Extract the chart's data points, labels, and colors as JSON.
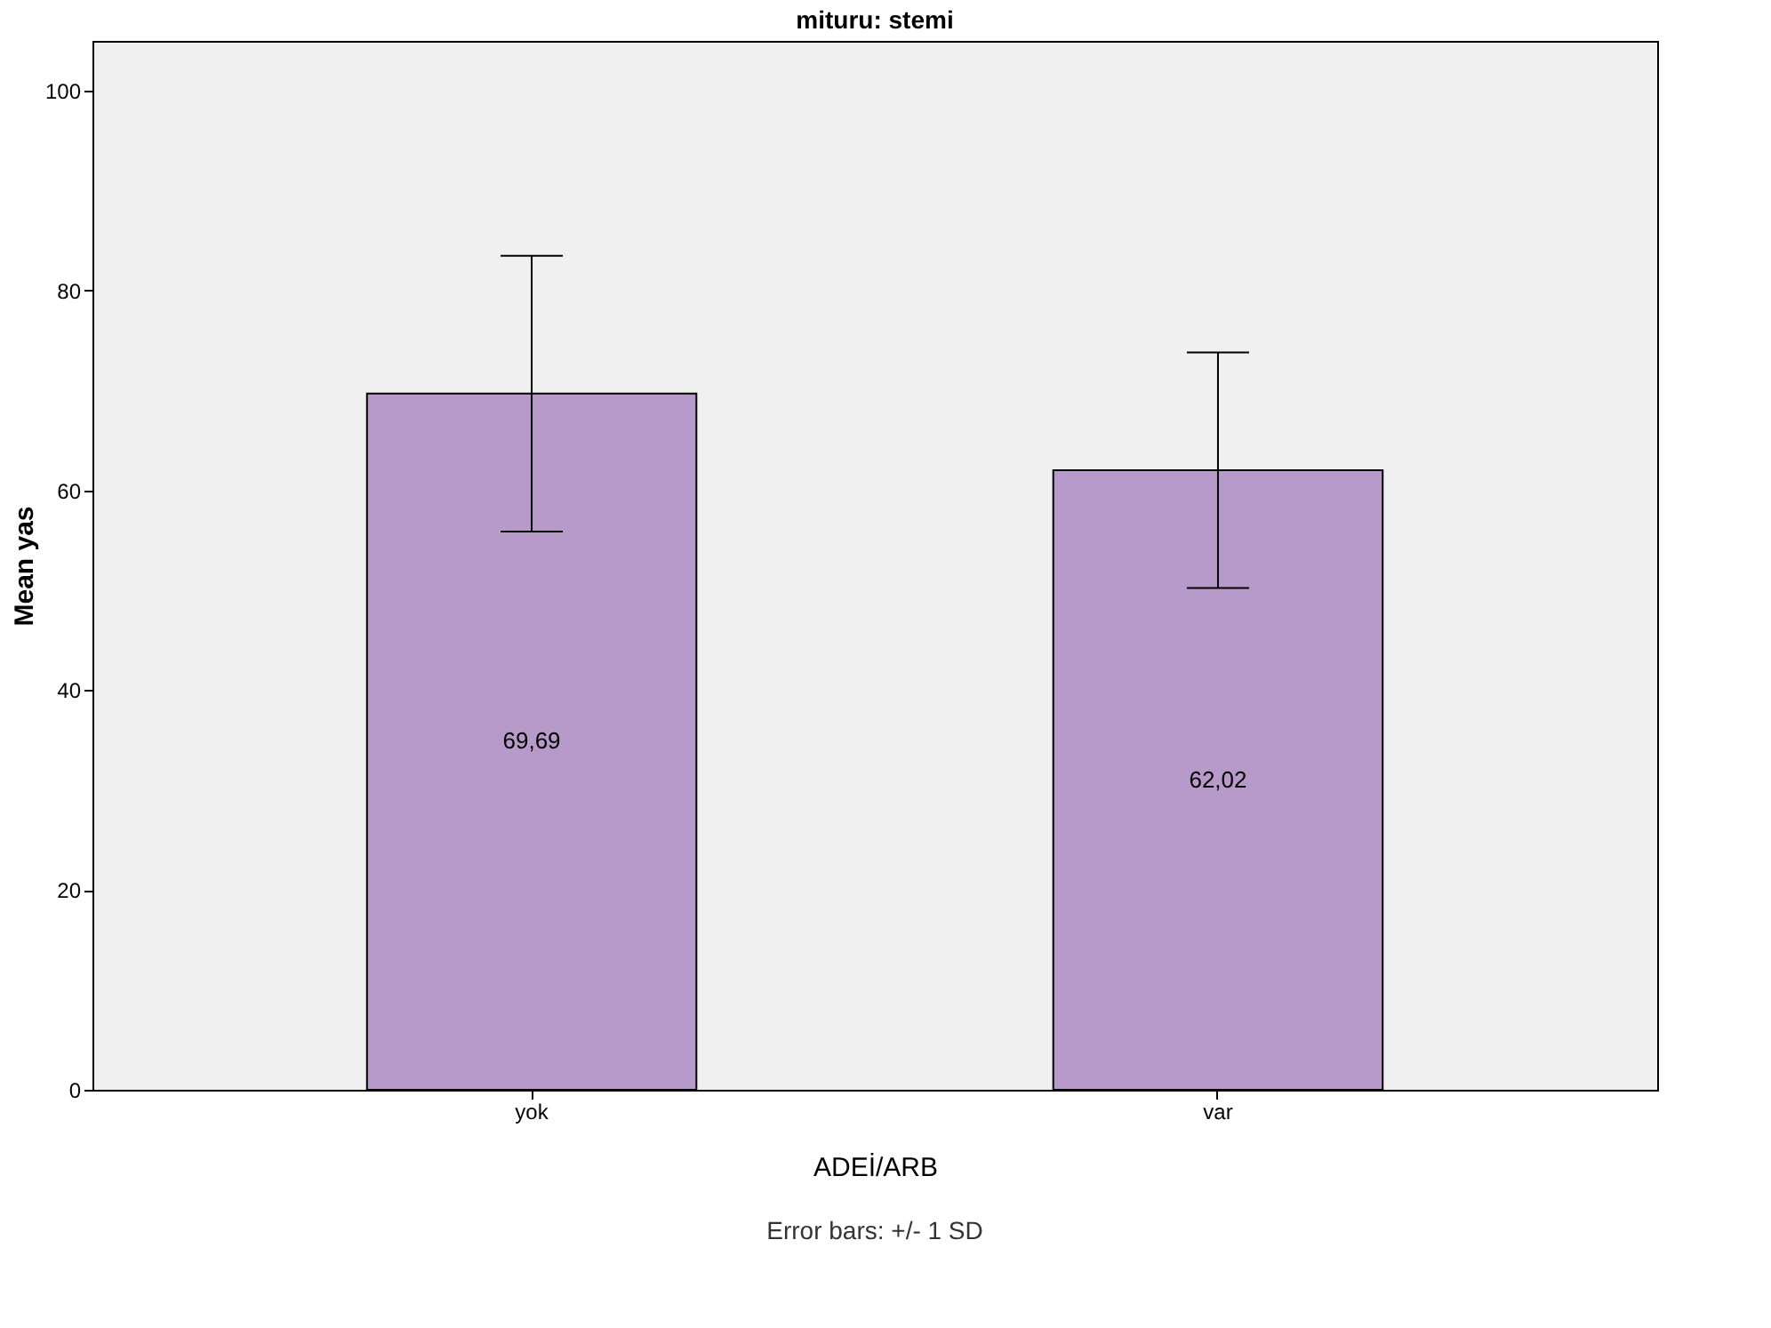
{
  "chart_data": {
    "type": "bar",
    "title": "mituru: stemi",
    "xlabel": "ADEİ/ARB",
    "ylabel": "Mean yas",
    "categories": [
      "yok",
      "var"
    ],
    "values": [
      69.69,
      62.02
    ],
    "errors": [
      13.8,
      11.8
    ],
    "value_labels": [
      "69,69",
      "62,02"
    ],
    "color": "#b89aca",
    "ylim": [
      0,
      105
    ],
    "yticks": [
      0,
      20,
      40,
      60,
      80,
      100
    ],
    "grid": false,
    "annotations": [
      "Error bars: +/- 1 SD"
    ]
  }
}
